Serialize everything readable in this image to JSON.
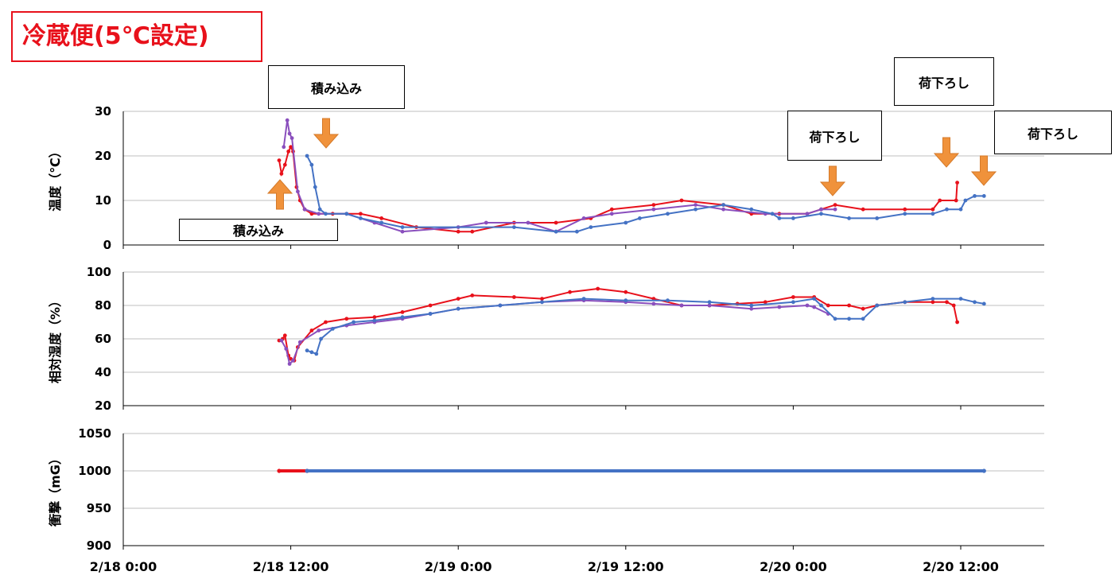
{
  "header": {
    "title": "冷蔵便(5℃設定)"
  },
  "annotations": {
    "load_top": "積み込み",
    "load_bottom": "積み込み",
    "unload_1": "荷下ろし",
    "unload_2": "荷下ろし",
    "unload_3": "荷下ろし"
  },
  "colors": {
    "red": "#e8111b",
    "purple": "#8a4fbd",
    "blue": "#4472c4",
    "arrow": "#f0923b",
    "grid": "#bfbfbf"
  },
  "chart_data": [
    {
      "type": "line",
      "ylabel": "温度（℃）",
      "ylim": [
        0,
        30
      ],
      "yticks": [
        "0",
        "10",
        "20",
        "30"
      ],
      "xlabel": "",
      "xticks": [
        "2/18 0:00",
        "2/18 12:00",
        "2/19 0:00",
        "2/19 12:00",
        "2/20 0:00",
        "2/20 12:00"
      ],
      "series": [
        {
          "color": "red",
          "points": [
            [
              "2/18 11:10",
              19
            ],
            [
              "2/18 11:20",
              16
            ],
            [
              "2/18 11:35",
              18
            ],
            [
              "2/18 11:50",
              21
            ],
            [
              "2/18 12:00",
              22
            ],
            [
              "2/18 12:10",
              21
            ],
            [
              "2/18 12:25",
              13
            ],
            [
              "2/18 12:40",
              10
            ],
            [
              "2/18 13:00",
              8
            ],
            [
              "2/18 13:30",
              7
            ],
            [
              "2/18 15:00",
              7
            ],
            [
              "2/18 17:00",
              7
            ],
            [
              "2/18 18:30",
              6
            ],
            [
              "2/18 21:00",
              4
            ],
            [
              "2/19 0:00",
              3
            ],
            [
              "2/19 1:00",
              3
            ],
            [
              "2/19 4:00",
              5
            ],
            [
              "2/19 7:00",
              5
            ],
            [
              "2/19 9:30",
              6
            ],
            [
              "2/19 11:00",
              8
            ],
            [
              "2/19 14:00",
              9
            ],
            [
              "2/19 16:00",
              10
            ],
            [
              "2/19 19:00",
              9
            ],
            [
              "2/19 21:00",
              7
            ],
            [
              "2/19 23:00",
              7
            ],
            [
              "2/20 1:00",
              7
            ],
            [
              "2/20 2:00",
              8
            ],
            [
              "2/20 3:00",
              9
            ],
            [
              "2/20 5:00",
              8
            ],
            [
              "2/20 8:00",
              8
            ],
            [
              "2/20 10:00",
              8
            ],
            [
              "2/20 10:30",
              10
            ],
            [
              "2/20 11:40",
              10
            ],
            [
              "2/20 11:45",
              14
            ]
          ]
        },
        {
          "color": "purple",
          "points": [
            [
              "2/18 11:30",
              22
            ],
            [
              "2/18 11:45",
              28
            ],
            [
              "2/18 11:55",
              25
            ],
            [
              "2/18 12:05",
              24
            ],
            [
              "2/18 12:30",
              12
            ],
            [
              "2/18 13:00",
              8
            ],
            [
              "2/18 14:00",
              7
            ],
            [
              "2/18 16:00",
              7
            ],
            [
              "2/18 18:00",
              5
            ],
            [
              "2/18 20:00",
              3
            ],
            [
              "2/19 0:00",
              4
            ],
            [
              "2/19 2:00",
              5
            ],
            [
              "2/19 5:00",
              5
            ],
            [
              "2/19 7:00",
              3
            ],
            [
              "2/19 9:00",
              6
            ],
            [
              "2/19 11:00",
              7
            ],
            [
              "2/19 14:00",
              8
            ],
            [
              "2/19 17:00",
              9
            ],
            [
              "2/19 19:00",
              8
            ],
            [
              "2/19 22:00",
              7
            ],
            [
              "2/20 1:00",
              7
            ],
            [
              "2/20 2:00",
              8
            ],
            [
              "2/20 3:00",
              8
            ]
          ]
        },
        {
          "color": "blue",
          "points": [
            [
              "2/18 13:10",
              20
            ],
            [
              "2/18 13:30",
              18
            ],
            [
              "2/18 13:45",
              13
            ],
            [
              "2/18 14:05",
              8
            ],
            [
              "2/18 14:30",
              7
            ],
            [
              "2/18 16:00",
              7
            ],
            [
              "2/18 17:00",
              6
            ],
            [
              "2/18 18:30",
              5
            ],
            [
              "2/18 20:00",
              4
            ],
            [
              "2/19 4:00",
              4
            ],
            [
              "2/19 7:00",
              3
            ],
            [
              "2/19 8:30",
              3
            ],
            [
              "2/19 9:30",
              4
            ],
            [
              "2/19 12:00",
              5
            ],
            [
              "2/19 13:00",
              6
            ],
            [
              "2/19 15:00",
              7
            ],
            [
              "2/19 17:00",
              8
            ],
            [
              "2/19 19:00",
              9
            ],
            [
              "2/19 21:00",
              8
            ],
            [
              "2/19 22:30",
              7
            ],
            [
              "2/19 23:00",
              6
            ],
            [
              "2/20 0:00",
              6
            ],
            [
              "2/20 2:00",
              7
            ],
            [
              "2/20 4:00",
              6
            ],
            [
              "2/20 6:00",
              6
            ],
            [
              "2/20 8:00",
              7
            ],
            [
              "2/20 10:00",
              7
            ],
            [
              "2/20 11:00",
              8
            ],
            [
              "2/20 12:00",
              8
            ],
            [
              "2/20 12:20",
              10
            ],
            [
              "2/20 13:00",
              11
            ],
            [
              "2/20 13:40",
              11
            ]
          ]
        }
      ]
    },
    {
      "type": "line",
      "ylabel": "相対湿度（%）",
      "ylim": [
        20,
        100
      ],
      "yticks": [
        "20",
        "40",
        "60",
        "80",
        "100"
      ],
      "xlabel": "",
      "series": [
        {
          "color": "red",
          "points": [
            [
              "2/18 11:10",
              59
            ],
            [
              "2/18 11:25",
              60
            ],
            [
              "2/18 11:35",
              62
            ],
            [
              "2/18 11:50",
              50
            ],
            [
              "2/18 12:00",
              48
            ],
            [
              "2/18 12:15",
              47
            ],
            [
              "2/18 12:30",
              55
            ],
            [
              "2/18 13:30",
              65
            ],
            [
              "2/18 14:30",
              70
            ],
            [
              "2/18 16:00",
              72
            ],
            [
              "2/18 18:00",
              73
            ],
            [
              "2/18 20:00",
              76
            ],
            [
              "2/18 22:00",
              80
            ],
            [
              "2/19 0:00",
              84
            ],
            [
              "2/19 1:00",
              86
            ],
            [
              "2/19 4:00",
              85
            ],
            [
              "2/19 6:00",
              84
            ],
            [
              "2/19 8:00",
              88
            ],
            [
              "2/19 10:00",
              90
            ],
            [
              "2/19 12:00",
              88
            ],
            [
              "2/19 14:00",
              84
            ],
            [
              "2/19 16:00",
              80
            ],
            [
              "2/19 18:00",
              80
            ],
            [
              "2/19 20:00",
              81
            ],
            [
              "2/19 22:00",
              82
            ],
            [
              "2/20 0:00",
              85
            ],
            [
              "2/20 1:30",
              85
            ],
            [
              "2/20 2:30",
              80
            ],
            [
              "2/20 4:00",
              80
            ],
            [
              "2/20 5:00",
              78
            ],
            [
              "2/20 6:00",
              80
            ],
            [
              "2/20 8:00",
              82
            ],
            [
              "2/20 10:00",
              82
            ],
            [
              "2/20 11:00",
              82
            ],
            [
              "2/20 11:30",
              80
            ],
            [
              "2/20 11:45",
              70
            ]
          ]
        },
        {
          "color": "purple",
          "points": [
            [
              "2/18 11:20",
              59
            ],
            [
              "2/18 11:40",
              54
            ],
            [
              "2/18 11:55",
              45
            ],
            [
              "2/18 12:10",
              47
            ],
            [
              "2/18 12:40",
              58
            ],
            [
              "2/18 14:00",
              65
            ],
            [
              "2/18 16:00",
              68
            ],
            [
              "2/18 18:00",
              70
            ],
            [
              "2/18 20:00",
              72
            ],
            [
              "2/18 22:00",
              75
            ],
            [
              "2/19 0:00",
              78
            ],
            [
              "2/19 3:00",
              80
            ],
            [
              "2/19 6:00",
              82
            ],
            [
              "2/19 9:00",
              83
            ],
            [
              "2/19 12:00",
              82
            ],
            [
              "2/19 14:00",
              81
            ],
            [
              "2/19 16:00",
              80
            ],
            [
              "2/19 18:00",
              80
            ],
            [
              "2/19 21:00",
              78
            ],
            [
              "2/19 23:00",
              79
            ],
            [
              "2/20 1:00",
              80
            ],
            [
              "2/20 1:30",
              79
            ],
            [
              "2/20 2:30",
              75
            ]
          ]
        },
        {
          "color": "blue",
          "points": [
            [
              "2/18 13:10",
              53
            ],
            [
              "2/18 13:30",
              52
            ],
            [
              "2/18 13:50",
              51
            ],
            [
              "2/18 14:10",
              60
            ],
            [
              "2/18 15:00",
              66
            ],
            [
              "2/18 16:30",
              70
            ],
            [
              "2/18 18:00",
              71
            ],
            [
              "2/18 20:00",
              73
            ],
            [
              "2/18 22:00",
              75
            ],
            [
              "2/19 0:00",
              78
            ],
            [
              "2/19 3:00",
              80
            ],
            [
              "2/19 6:00",
              82
            ],
            [
              "2/19 9:00",
              84
            ],
            [
              "2/19 12:00",
              83
            ],
            [
              "2/19 15:00",
              83
            ],
            [
              "2/19 18:00",
              82
            ],
            [
              "2/19 21:00",
              80
            ],
            [
              "2/20 0:00",
              82
            ],
            [
              "2/20 1:30",
              84
            ],
            [
              "2/20 2:00",
              80
            ],
            [
              "2/20 3:00",
              72
            ],
            [
              "2/20 4:00",
              72
            ],
            [
              "2/20 5:00",
              72
            ],
            [
              "2/20 6:00",
              80
            ],
            [
              "2/20 8:00",
              82
            ],
            [
              "2/20 10:00",
              84
            ],
            [
              "2/20 12:00",
              84
            ],
            [
              "2/20 13:00",
              82
            ],
            [
              "2/20 13:40",
              81
            ]
          ]
        }
      ]
    },
    {
      "type": "line",
      "ylabel": "衝撃（mG）",
      "ylim": [
        900,
        1050
      ],
      "yticks": [
        "900",
        "950",
        "1000",
        "1050"
      ],
      "xlabel": "",
      "series": [
        {
          "color": "red",
          "points": [
            [
              "2/18 11:10",
              1000
            ],
            [
              "2/18 13:10",
              1000
            ]
          ]
        },
        {
          "color": "blue",
          "points": [
            [
              "2/18 13:10",
              1000
            ],
            [
              "2/20 13:40",
              1000
            ]
          ]
        }
      ]
    }
  ]
}
